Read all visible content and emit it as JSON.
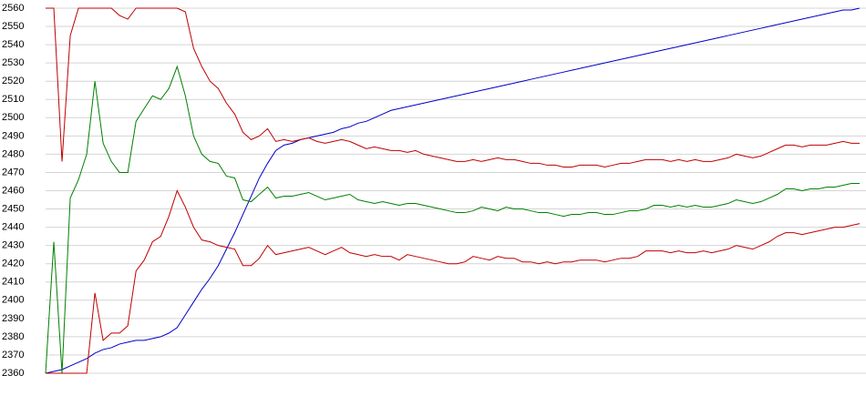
{
  "chart_data": {
    "type": "line",
    "ylim": [
      2360,
      2560
    ],
    "yticks": [
      2360,
      2370,
      2380,
      2390,
      2400,
      2410,
      2420,
      2430,
      2440,
      2450,
      2460,
      2470,
      2480,
      2490,
      2500,
      2510,
      2520,
      2530,
      2540,
      2550,
      2560
    ],
    "grid": true,
    "series": [
      {
        "color": "#0000c8",
        "values": [
          2360,
          2361,
          2362,
          2364,
          2366,
          2368,
          2371,
          2373,
          2374,
          2376,
          2377,
          2378,
          2378,
          2379,
          2380,
          2382,
          2385,
          2392,
          2399,
          2406,
          2412,
          2419,
          2428,
          2437,
          2447,
          2457,
          2467,
          2475,
          2482,
          2485,
          2486,
          2488,
          2489,
          2490,
          2491,
          2492,
          2494,
          2495,
          2497,
          2498,
          2500,
          2502,
          2504,
          2505,
          2506,
          2507,
          2508,
          2509,
          2510,
          2511,
          2512,
          2513,
          2514,
          2515,
          2516,
          2517,
          2518,
          2519,
          2520,
          2521,
          2522,
          2523,
          2524,
          2525,
          2526,
          2527,
          2528,
          2529,
          2530,
          2531,
          2532,
          2533,
          2534,
          2535,
          2536,
          2537,
          2538,
          2539,
          2540,
          2541,
          2542,
          2543,
          2544,
          2545,
          2546,
          2547,
          2548,
          2549,
          2550,
          2551,
          2552,
          2553,
          2554,
          2555,
          2556,
          2557,
          2558,
          2559,
          2559,
          2560
        ]
      },
      {
        "color": "#c00000",
        "values": [
          2560,
          2560,
          2476,
          2545,
          2560,
          2560,
          2560,
          2560,
          2560,
          2556,
          2554,
          2560,
          2560,
          2560,
          2560,
          2560,
          2560,
          2558,
          2538,
          2528,
          2520,
          2516,
          2508,
          2502,
          2492,
          2488,
          2490,
          2494,
          2487,
          2488,
          2487,
          2488,
          2489,
          2487,
          2486,
          2487,
          2488,
          2487,
          2485,
          2483,
          2484,
          2483,
          2482,
          2482,
          2481,
          2482,
          2480,
          2479,
          2478,
          2477,
          2476,
          2476,
          2477,
          2476,
          2477,
          2478,
          2477,
          2477,
          2476,
          2475,
          2475,
          2474,
          2474,
          2473,
          2473,
          2474,
          2474,
          2474,
          2473,
          2474,
          2475,
          2475,
          2476,
          2477,
          2477,
          2477,
          2476,
          2477,
          2476,
          2477,
          2476,
          2476,
          2477,
          2478,
          2480,
          2479,
          2478,
          2479,
          2481,
          2483,
          2485,
          2485,
          2484,
          2485,
          2485,
          2485,
          2486,
          2487,
          2486,
          2486
        ]
      },
      {
        "color": "#008000",
        "values": [
          2360,
          2432,
          2360,
          2456,
          2466,
          2480,
          2520,
          2486,
          2476,
          2470,
          2470,
          2498,
          2505,
          2512,
          2510,
          2516,
          2528,
          2512,
          2490,
          2480,
          2476,
          2475,
          2468,
          2467,
          2455,
          2454,
          2458,
          2462,
          2456,
          2457,
          2457,
          2458,
          2459,
          2457,
          2455,
          2456,
          2457,
          2458,
          2455,
          2454,
          2453,
          2454,
          2453,
          2452,
          2453,
          2453,
          2452,
          2451,
          2450,
          2449,
          2448,
          2448,
          2449,
          2451,
          2450,
          2449,
          2451,
          2450,
          2450,
          2449,
          2448,
          2448,
          2447,
          2446,
          2447,
          2447,
          2448,
          2448,
          2447,
          2447,
          2448,
          2449,
          2449,
          2450,
          2452,
          2452,
          2451,
          2452,
          2451,
          2452,
          2451,
          2451,
          2452,
          2453,
          2455,
          2454,
          2453,
          2454,
          2456,
          2458,
          2461,
          2461,
          2460,
          2461,
          2461,
          2462,
          2462,
          2463,
          2464,
          2464
        ]
      },
      {
        "color": "#c00000",
        "values": [
          2360,
          2360,
          2360,
          2360,
          2360,
          2360,
          2404,
          2378,
          2382,
          2382,
          2386,
          2416,
          2422,
          2432,
          2435,
          2446,
          2460,
          2451,
          2440,
          2433,
          2432,
          2430,
          2429,
          2428,
          2419,
          2419,
          2423,
          2430,
          2425,
          2426,
          2427,
          2428,
          2429,
          2427,
          2425,
          2427,
          2429,
          2426,
          2425,
          2424,
          2425,
          2424,
          2424,
          2422,
          2425,
          2424,
          2423,
          2422,
          2421,
          2420,
          2420,
          2421,
          2424,
          2423,
          2422,
          2424,
          2423,
          2423,
          2421,
          2421,
          2420,
          2421,
          2420,
          2421,
          2421,
          2422,
          2422,
          2422,
          2421,
          2422,
          2423,
          2423,
          2424,
          2427,
          2427,
          2427,
          2426,
          2427,
          2426,
          2426,
          2427,
          2426,
          2427,
          2428,
          2430,
          2429,
          2428,
          2430,
          2432,
          2435,
          2437,
          2437,
          2436,
          2437,
          2438,
          2439,
          2440,
          2440,
          2441,
          2442
        ]
      }
    ]
  }
}
